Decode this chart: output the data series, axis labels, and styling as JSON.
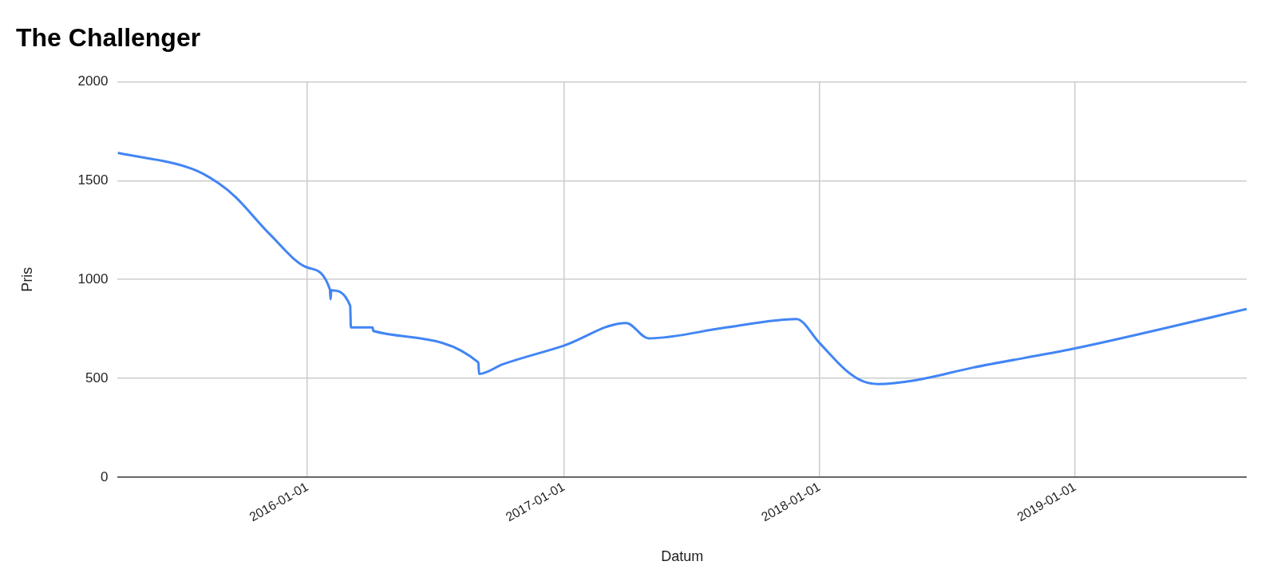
{
  "chart_data": {
    "type": "line",
    "title": "The Challenger",
    "xlabel": "Datum",
    "ylabel": "Pris",
    "x": [
      "2015-04-05",
      "2015-07-22",
      "2015-08-27",
      "2015-09-20",
      "2015-11-07",
      "2016-01-01",
      "2016-02-02",
      "2016-02-03",
      "2016-02-04",
      "2016-03-02",
      "2016-03-03",
      "2016-04-03",
      "2016-04-04",
      "2016-09-01",
      "2016-09-02",
      "2016-10-06",
      "2017-01-01",
      "2017-03-31",
      "2017-05-02",
      "2017-08-21",
      "2017-11-29",
      "2018-01-01",
      "2018-02-08",
      "2018-03-04",
      "2018-03-26",
      "2018-05-18",
      "2018-08-08",
      "2019-01-01",
      "2019-09-03"
    ],
    "series": [
      {
        "color": "#4285f4",
        "values": [
          1640,
          1557,
          1487,
          1418,
          1233,
          1060,
          950,
          900,
          945,
          867,
          757,
          757,
          739,
          580,
          522,
          571,
          665,
          780,
          702,
          757,
          800,
          679,
          540,
          485,
          471,
          490,
          554,
          651,
          850
        ]
      }
    ],
    "xlim": [
      "2015-04-05",
      "2019-09-03"
    ],
    "xticks": [
      "2016-01-01",
      "2017-01-01",
      "2018-01-01",
      "2019-01-01"
    ],
    "ylim": [
      0,
      2000
    ],
    "yticks": [
      0,
      500,
      1000,
      1500,
      2000
    ],
    "grid": true,
    "marker": "none",
    "line_style": "solid"
  }
}
